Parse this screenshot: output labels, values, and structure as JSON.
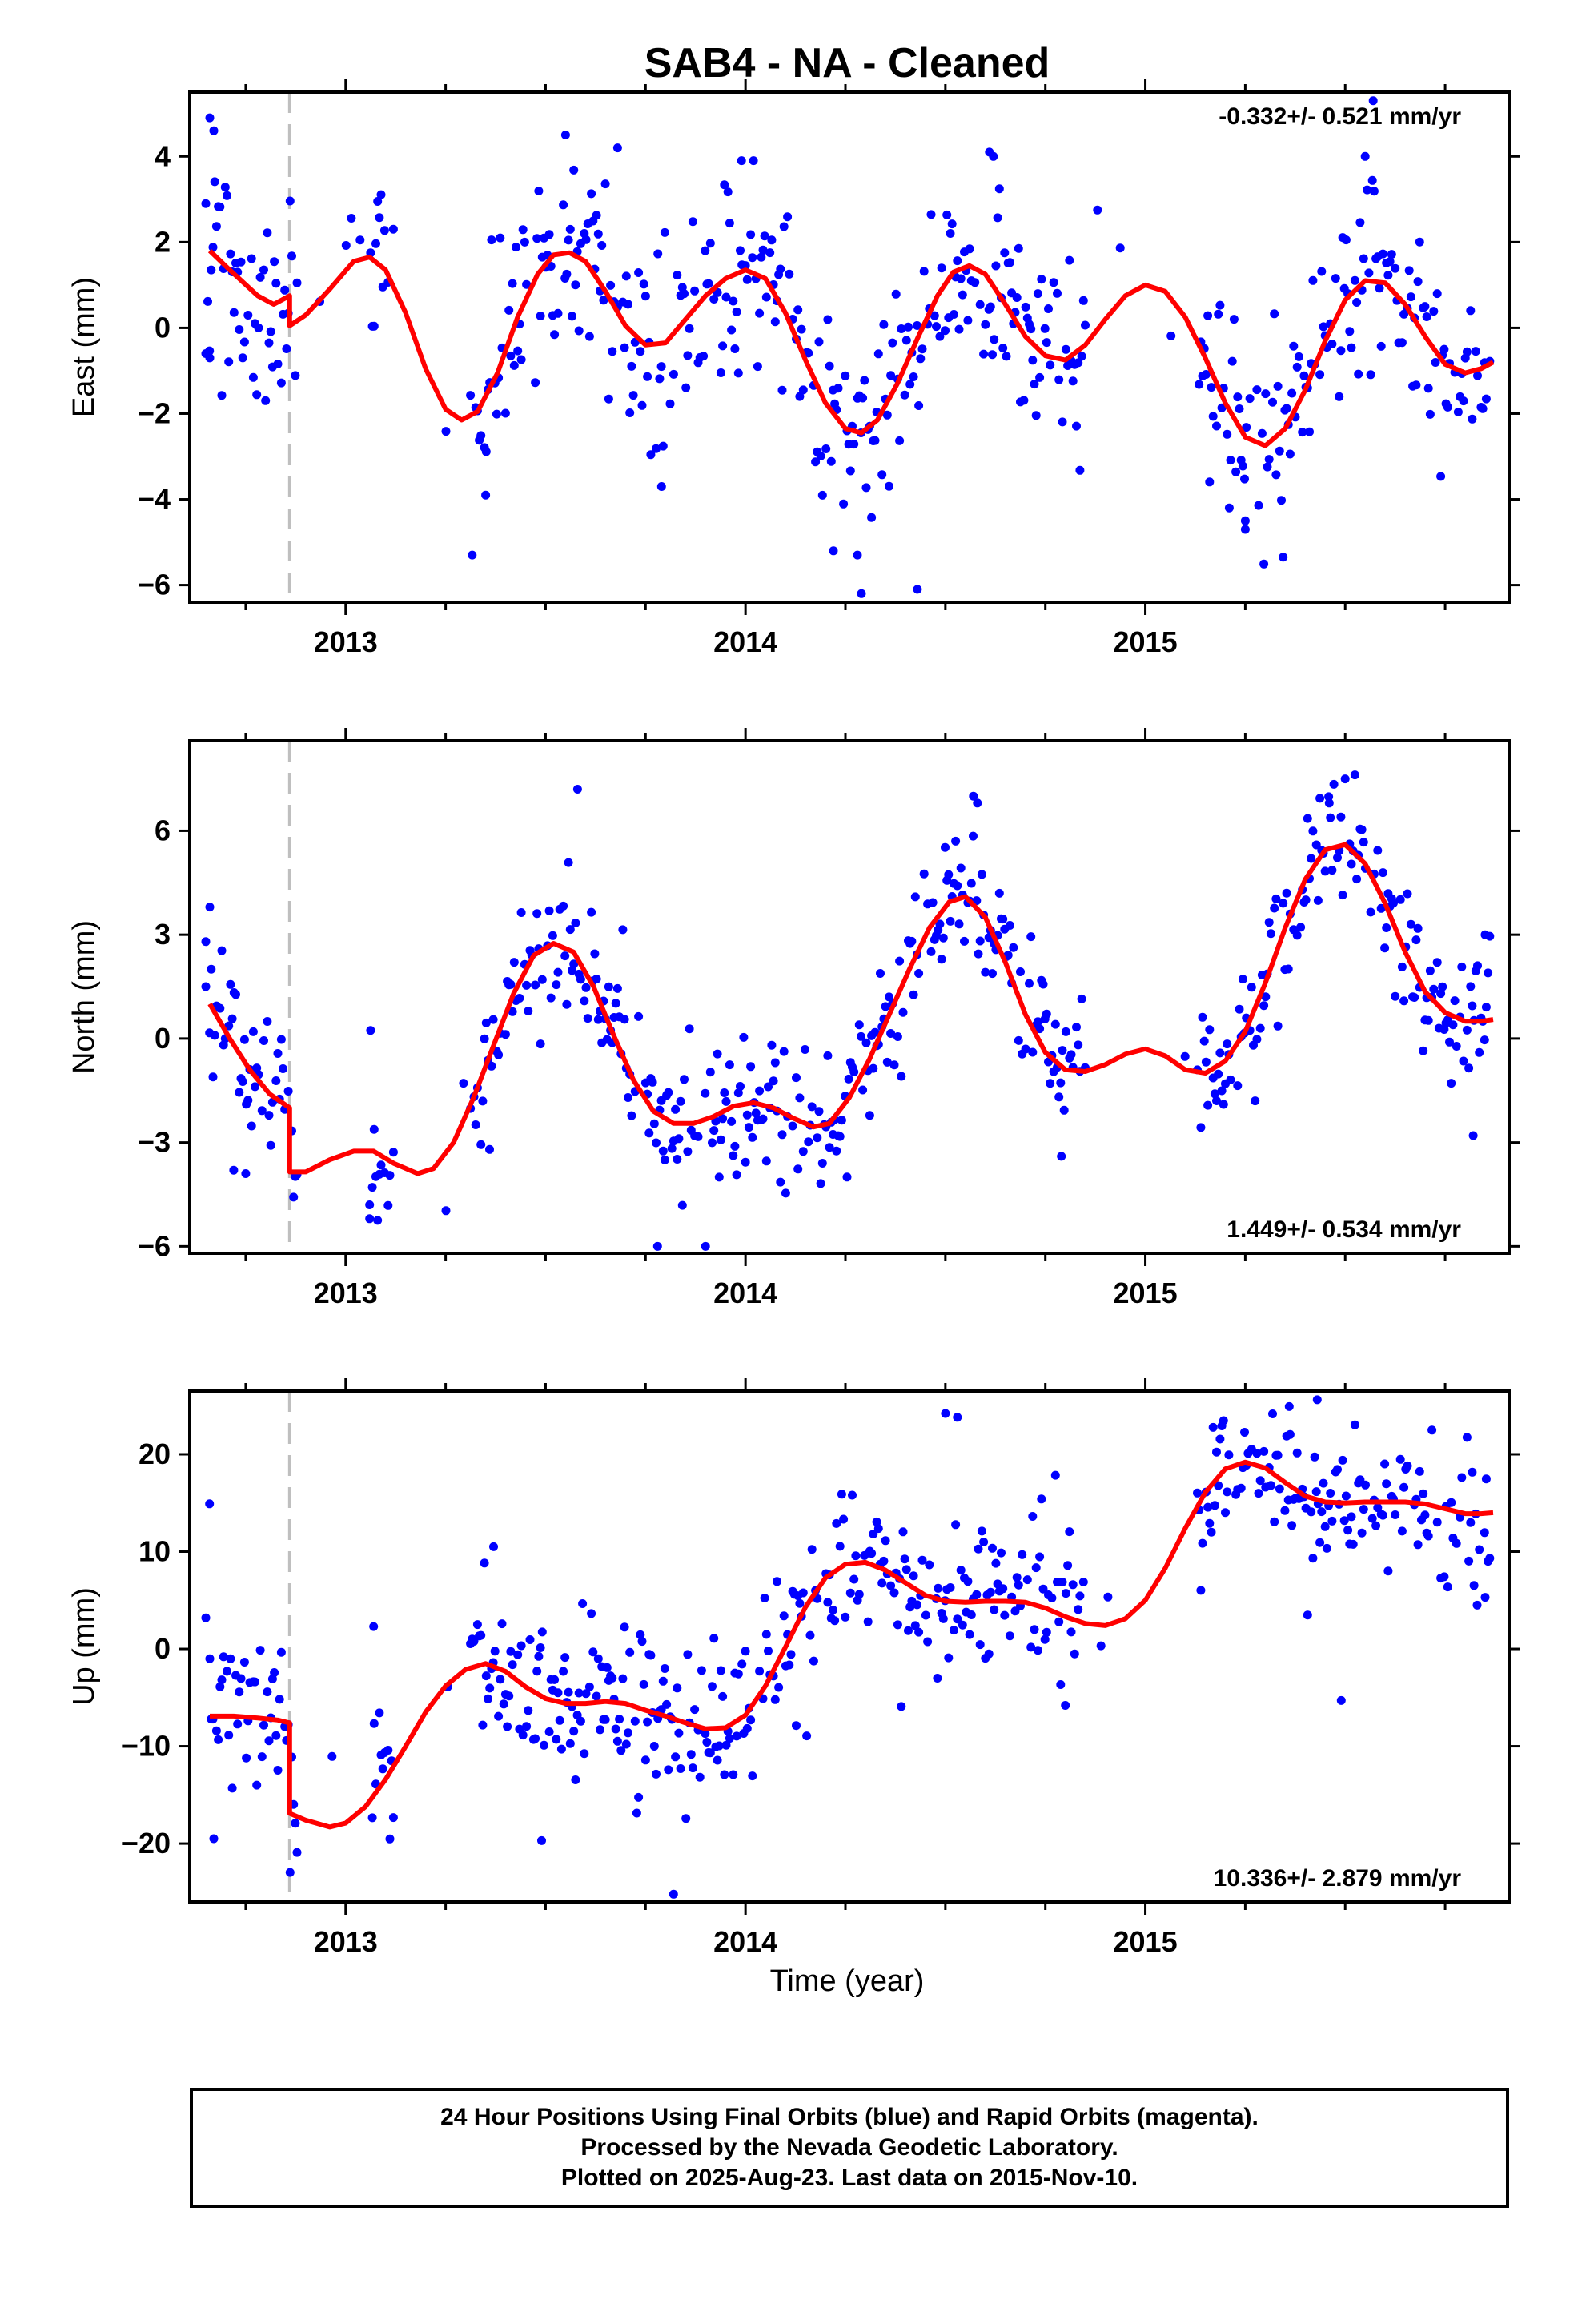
{
  "title": "SAB4  - NA - Cleaned",
  "xlabel": "Time (year)",
  "caption": [
    "24 Hour Positions Using Final Orbits (blue) and Rapid Orbits (magenta).",
    "Processed by the Nevada Geodetic Laboratory.",
    "Plotted on 2025-Aug-23. Last data on 2015-Nov-10."
  ],
  "colors": {
    "data": "#0000ff",
    "model": "#ff0000",
    "event": "#bfbfbf",
    "frame": "#000000"
  },
  "chart_data": [
    {
      "type": "scatter",
      "component": "East",
      "ylabel": "East (mm)",
      "rate": "-0.332+/- 0.521 mm/yr",
      "xlim": [
        2012.61,
        2015.91
      ],
      "ylim": [
        -6.4,
        5.5
      ],
      "yticks": [
        -6,
        -4,
        -2,
        0,
        2,
        4
      ],
      "xticks": [
        2013,
        2014,
        2015
      ],
      "event_line_x": 2012.86,
      "data_gaps": [
        [
          2012.88,
          2013.06
        ],
        [
          2013.12,
          2013.31
        ],
        [
          2014.85,
          2015.13
        ],
        [
          2015.82,
          2015.8
        ]
      ],
      "model_knots": [
        [
          2012.66,
          1.8
        ],
        [
          2012.71,
          1.35
        ],
        [
          2012.78,
          0.75
        ],
        [
          2012.82,
          0.55
        ],
        [
          2012.86,
          0.75
        ],
        [
          2012.86,
          0.05
        ],
        [
          2012.9,
          0.3
        ],
        [
          2012.96,
          0.9
        ],
        [
          2013.02,
          1.55
        ],
        [
          2013.06,
          1.65
        ],
        [
          2013.1,
          1.35
        ],
        [
          2013.15,
          0.35
        ],
        [
          2013.2,
          -0.95
        ],
        [
          2013.25,
          -1.9
        ],
        [
          2013.29,
          -2.15
        ],
        [
          2013.33,
          -1.95
        ],
        [
          2013.38,
          -1.05
        ],
        [
          2013.43,
          0.25
        ],
        [
          2013.48,
          1.25
        ],
        [
          2013.52,
          1.7
        ],
        [
          2013.56,
          1.75
        ],
        [
          2013.6,
          1.55
        ],
        [
          2013.65,
          0.85
        ],
        [
          2013.7,
          0.05
        ],
        [
          2013.75,
          -0.4
        ],
        [
          2013.8,
          -0.35
        ],
        [
          2013.85,
          0.2
        ],
        [
          2013.9,
          0.75
        ],
        [
          2013.95,
          1.15
        ],
        [
          2014.0,
          1.35
        ],
        [
          2014.05,
          1.15
        ],
        [
          2014.1,
          0.35
        ],
        [
          2014.15,
          -0.75
        ],
        [
          2014.2,
          -1.75
        ],
        [
          2014.25,
          -2.35
        ],
        [
          2014.29,
          -2.45
        ],
        [
          2014.33,
          -2.15
        ],
        [
          2014.38,
          -1.3
        ],
        [
          2014.43,
          -0.25
        ],
        [
          2014.48,
          0.75
        ],
        [
          2014.52,
          1.3
        ],
        [
          2014.56,
          1.45
        ],
        [
          2014.6,
          1.25
        ],
        [
          2014.65,
          0.55
        ],
        [
          2014.7,
          -0.2
        ],
        [
          2014.75,
          -0.65
        ],
        [
          2014.8,
          -0.75
        ],
        [
          2014.85,
          -0.4
        ],
        [
          2014.9,
          0.2
        ],
        [
          2014.95,
          0.75
        ],
        [
          2015.0,
          1.0
        ],
        [
          2015.05,
          0.85
        ],
        [
          2015.1,
          0.25
        ],
        [
          2015.15,
          -0.7
        ],
        [
          2015.2,
          -1.75
        ],
        [
          2015.25,
          -2.55
        ],
        [
          2015.3,
          -2.75
        ],
        [
          2015.35,
          -2.35
        ],
        [
          2015.4,
          -1.45
        ],
        [
          2015.45,
          -0.3
        ],
        [
          2015.5,
          0.65
        ],
        [
          2015.55,
          1.1
        ],
        [
          2015.6,
          1.05
        ],
        [
          2015.65,
          0.55
        ],
        [
          2015.7,
          -0.2
        ],
        [
          2015.75,
          -0.85
        ],
        [
          2015.8,
          -1.05
        ],
        [
          2015.84,
          -0.95
        ],
        [
          2015.87,
          -0.8
        ]
      ],
      "scatter_sd": 1.1,
      "outliers": [
        [
          2012.66,
          4.9
        ],
        [
          2012.67,
          4.6
        ],
        [
          2012.65,
          2.9
        ],
        [
          2012.65,
          -0.6
        ],
        [
          2012.66,
          -0.7
        ],
        [
          2013.55,
          4.5
        ],
        [
          2013.68,
          4.2
        ],
        [
          2013.99,
          3.9
        ],
        [
          2014.02,
          3.9
        ],
        [
          2014.29,
          -6.2
        ],
        [
          2014.43,
          -6.1
        ],
        [
          2014.61,
          4.1
        ],
        [
          2014.62,
          4.0
        ],
        [
          2015.21,
          -4.2
        ],
        [
          2015.25,
          -4.7
        ],
        [
          2015.25,
          -4.5
        ],
        [
          2015.57,
          5.3
        ],
        [
          2015.55,
          4.0
        ],
        [
          2013.35,
          -3.9
        ],
        [
          2013.79,
          -3.7
        ],
        [
          2014.28,
          -5.3
        ],
        [
          2014.22,
          -5.2
        ]
      ]
    },
    {
      "type": "scatter",
      "component": "North",
      "ylabel": "North (mm)",
      "rate": "1.449+/- 0.534 mm/yr",
      "xlim": [
        2012.61,
        2015.91
      ],
      "ylim": [
        -6.2,
        8.6
      ],
      "yticks": [
        -6,
        -3,
        0,
        3,
        6
      ],
      "xticks": [
        2013,
        2014,
        2015
      ],
      "event_line_x": 2012.86,
      "data_gaps": [
        [
          2012.88,
          2013.06
        ],
        [
          2013.12,
          2013.31
        ],
        [
          2014.85,
          2015.13
        ],
        [
          2015.82,
          2015.8
        ]
      ],
      "model_knots": [
        [
          2012.66,
          1.0
        ],
        [
          2012.71,
          0.0
        ],
        [
          2012.76,
          -0.9
        ],
        [
          2012.81,
          -1.6
        ],
        [
          2012.86,
          -2.0
        ],
        [
          2012.86,
          -3.85
        ],
        [
          2012.9,
          -3.85
        ],
        [
          2012.96,
          -3.5
        ],
        [
          2013.02,
          -3.25
        ],
        [
          2013.07,
          -3.25
        ],
        [
          2013.12,
          -3.6
        ],
        [
          2013.18,
          -3.9
        ],
        [
          2013.22,
          -3.75
        ],
        [
          2013.27,
          -3.0
        ],
        [
          2013.32,
          -1.7
        ],
        [
          2013.37,
          -0.2
        ],
        [
          2013.42,
          1.3
        ],
        [
          2013.47,
          2.4
        ],
        [
          2013.52,
          2.75
        ],
        [
          2013.57,
          2.5
        ],
        [
          2013.62,
          1.5
        ],
        [
          2013.67,
          0.1
        ],
        [
          2013.72,
          -1.2
        ],
        [
          2013.77,
          -2.1
        ],
        [
          2013.82,
          -2.45
        ],
        [
          2013.87,
          -2.45
        ],
        [
          2013.92,
          -2.25
        ],
        [
          2013.97,
          -1.95
        ],
        [
          2014.02,
          -1.85
        ],
        [
          2014.07,
          -2.0
        ],
        [
          2014.12,
          -2.3
        ],
        [
          2014.17,
          -2.55
        ],
        [
          2014.21,
          -2.45
        ],
        [
          2014.26,
          -1.7
        ],
        [
          2014.31,
          -0.6
        ],
        [
          2014.36,
          0.7
        ],
        [
          2014.41,
          2.0
        ],
        [
          2014.46,
          3.2
        ],
        [
          2014.51,
          3.95
        ],
        [
          2014.55,
          4.1
        ],
        [
          2014.6,
          3.5
        ],
        [
          2014.65,
          2.2
        ],
        [
          2014.7,
          0.7
        ],
        [
          2014.75,
          -0.4
        ],
        [
          2014.8,
          -0.9
        ],
        [
          2014.85,
          -0.95
        ],
        [
          2014.9,
          -0.75
        ],
        [
          2014.95,
          -0.45
        ],
        [
          2015.0,
          -0.3
        ],
        [
          2015.05,
          -0.5
        ],
        [
          2015.1,
          -0.9
        ],
        [
          2015.15,
          -1.0
        ],
        [
          2015.2,
          -0.65
        ],
        [
          2015.25,
          0.2
        ],
        [
          2015.3,
          1.6
        ],
        [
          2015.35,
          3.2
        ],
        [
          2015.4,
          4.6
        ],
        [
          2015.45,
          5.45
        ],
        [
          2015.5,
          5.6
        ],
        [
          2015.55,
          5.05
        ],
        [
          2015.6,
          3.9
        ],
        [
          2015.65,
          2.5
        ],
        [
          2015.7,
          1.35
        ],
        [
          2015.75,
          0.75
        ],
        [
          2015.8,
          0.5
        ],
        [
          2015.84,
          0.5
        ],
        [
          2015.87,
          0.55
        ]
      ],
      "scatter_sd": 1.05,
      "outliers": [
        [
          2012.66,
          3.8
        ],
        [
          2012.65,
          2.8
        ],
        [
          2012.65,
          1.5
        ],
        [
          2013.58,
          7.2
        ],
        [
          2015.5,
          7.5
        ],
        [
          2015.46,
          6.8
        ],
        [
          2013.06,
          -5.2
        ],
        [
          2013.06,
          -4.8
        ],
        [
          2013.78,
          -6.0
        ],
        [
          2013.9,
          -6.0
        ],
        [
          2014.57,
          7.0
        ],
        [
          2014.58,
          6.8
        ],
        [
          2014.79,
          -3.4
        ],
        [
          2015.82,
          -2.8
        ],
        [
          2015.85,
          3.0
        ],
        [
          2013.36,
          -3.2
        ],
        [
          2012.72,
          -3.8
        ],
        [
          2012.75,
          -3.9
        ]
      ]
    },
    {
      "type": "scatter",
      "component": "Up",
      "ylabel": "Up (mm)",
      "rate": "10.336+/- 2.879 mm/yr",
      "xlim": [
        2012.61,
        2015.91
      ],
      "ylim": [
        -26,
        26.5
      ],
      "yticks": [
        -20,
        -10,
        0,
        10,
        20
      ],
      "xticks": [
        2013,
        2014,
        2015
      ],
      "event_line_x": 2012.86,
      "data_gaps": [
        [
          2012.88,
          2013.06
        ],
        [
          2013.12,
          2013.31
        ],
        [
          2014.85,
          2015.13
        ],
        [
          2015.82,
          2015.8
        ]
      ],
      "model_knots": [
        [
          2012.66,
          -6.9
        ],
        [
          2012.72,
          -6.9
        ],
        [
          2012.78,
          -7.1
        ],
        [
          2012.83,
          -7.3
        ],
        [
          2012.86,
          -7.6
        ],
        [
          2012.86,
          -16.9
        ],
        [
          2012.9,
          -17.6
        ],
        [
          2012.96,
          -18.3
        ],
        [
          2013.0,
          -17.9
        ],
        [
          2013.05,
          -16.2
        ],
        [
          2013.1,
          -13.4
        ],
        [
          2013.15,
          -10.0
        ],
        [
          2013.2,
          -6.5
        ],
        [
          2013.25,
          -3.8
        ],
        [
          2013.3,
          -2.1
        ],
        [
          2013.35,
          -1.5
        ],
        [
          2013.4,
          -2.3
        ],
        [
          2013.45,
          -3.9
        ],
        [
          2013.5,
          -5.1
        ],
        [
          2013.55,
          -5.6
        ],
        [
          2013.6,
          -5.6
        ],
        [
          2013.65,
          -5.4
        ],
        [
          2013.7,
          -5.6
        ],
        [
          2013.75,
          -6.3
        ],
        [
          2013.8,
          -6.9
        ],
        [
          2013.85,
          -7.6
        ],
        [
          2013.9,
          -8.2
        ],
        [
          2013.95,
          -8.1
        ],
        [
          2014.0,
          -6.8
        ],
        [
          2014.05,
          -3.8
        ],
        [
          2014.1,
          0.2
        ],
        [
          2014.15,
          4.3
        ],
        [
          2014.2,
          7.3
        ],
        [
          2014.25,
          8.7
        ],
        [
          2014.3,
          8.9
        ],
        [
          2014.35,
          8.1
        ],
        [
          2014.4,
          6.8
        ],
        [
          2014.45,
          5.5
        ],
        [
          2014.5,
          4.9
        ],
        [
          2014.55,
          4.8
        ],
        [
          2014.6,
          4.9
        ],
        [
          2014.65,
          4.9
        ],
        [
          2014.7,
          4.8
        ],
        [
          2014.75,
          4.2
        ],
        [
          2014.8,
          3.3
        ],
        [
          2014.85,
          2.6
        ],
        [
          2014.9,
          2.4
        ],
        [
          2014.95,
          3.1
        ],
        [
          2015.0,
          5.0
        ],
        [
          2015.05,
          8.3
        ],
        [
          2015.1,
          12.4
        ],
        [
          2015.15,
          16.1
        ],
        [
          2015.2,
          18.5
        ],
        [
          2015.25,
          19.2
        ],
        [
          2015.3,
          18.6
        ],
        [
          2015.35,
          17.1
        ],
        [
          2015.4,
          15.7
        ],
        [
          2015.45,
          15.1
        ],
        [
          2015.5,
          15.0
        ],
        [
          2015.55,
          15.1
        ],
        [
          2015.6,
          15.1
        ],
        [
          2015.65,
          15.1
        ],
        [
          2015.7,
          14.9
        ],
        [
          2015.75,
          14.4
        ],
        [
          2015.8,
          13.9
        ],
        [
          2015.84,
          13.9
        ],
        [
          2015.87,
          14.0
        ]
      ],
      "scatter_sd": 4.0,
      "outliers": [
        [
          2012.65,
          3.2
        ],
        [
          2012.66,
          -1.0
        ],
        [
          2012.67,
          -19.5
        ],
        [
          2013.37,
          10.5
        ],
        [
          2013.49,
          -19.7
        ],
        [
          2013.82,
          -25.2
        ],
        [
          2014.5,
          24.2
        ],
        [
          2014.53,
          23.8
        ],
        [
          2015.43,
          25.6
        ],
        [
          2015.36,
          24.9
        ],
        [
          2015.49,
          -5.3
        ],
        [
          2015.85,
          5.3
        ],
        [
          2015.83,
          4.5
        ],
        [
          2014.8,
          -5.8
        ],
        [
          2014.48,
          -3.0
        ],
        [
          2013.07,
          2.3
        ]
      ]
    }
  ]
}
